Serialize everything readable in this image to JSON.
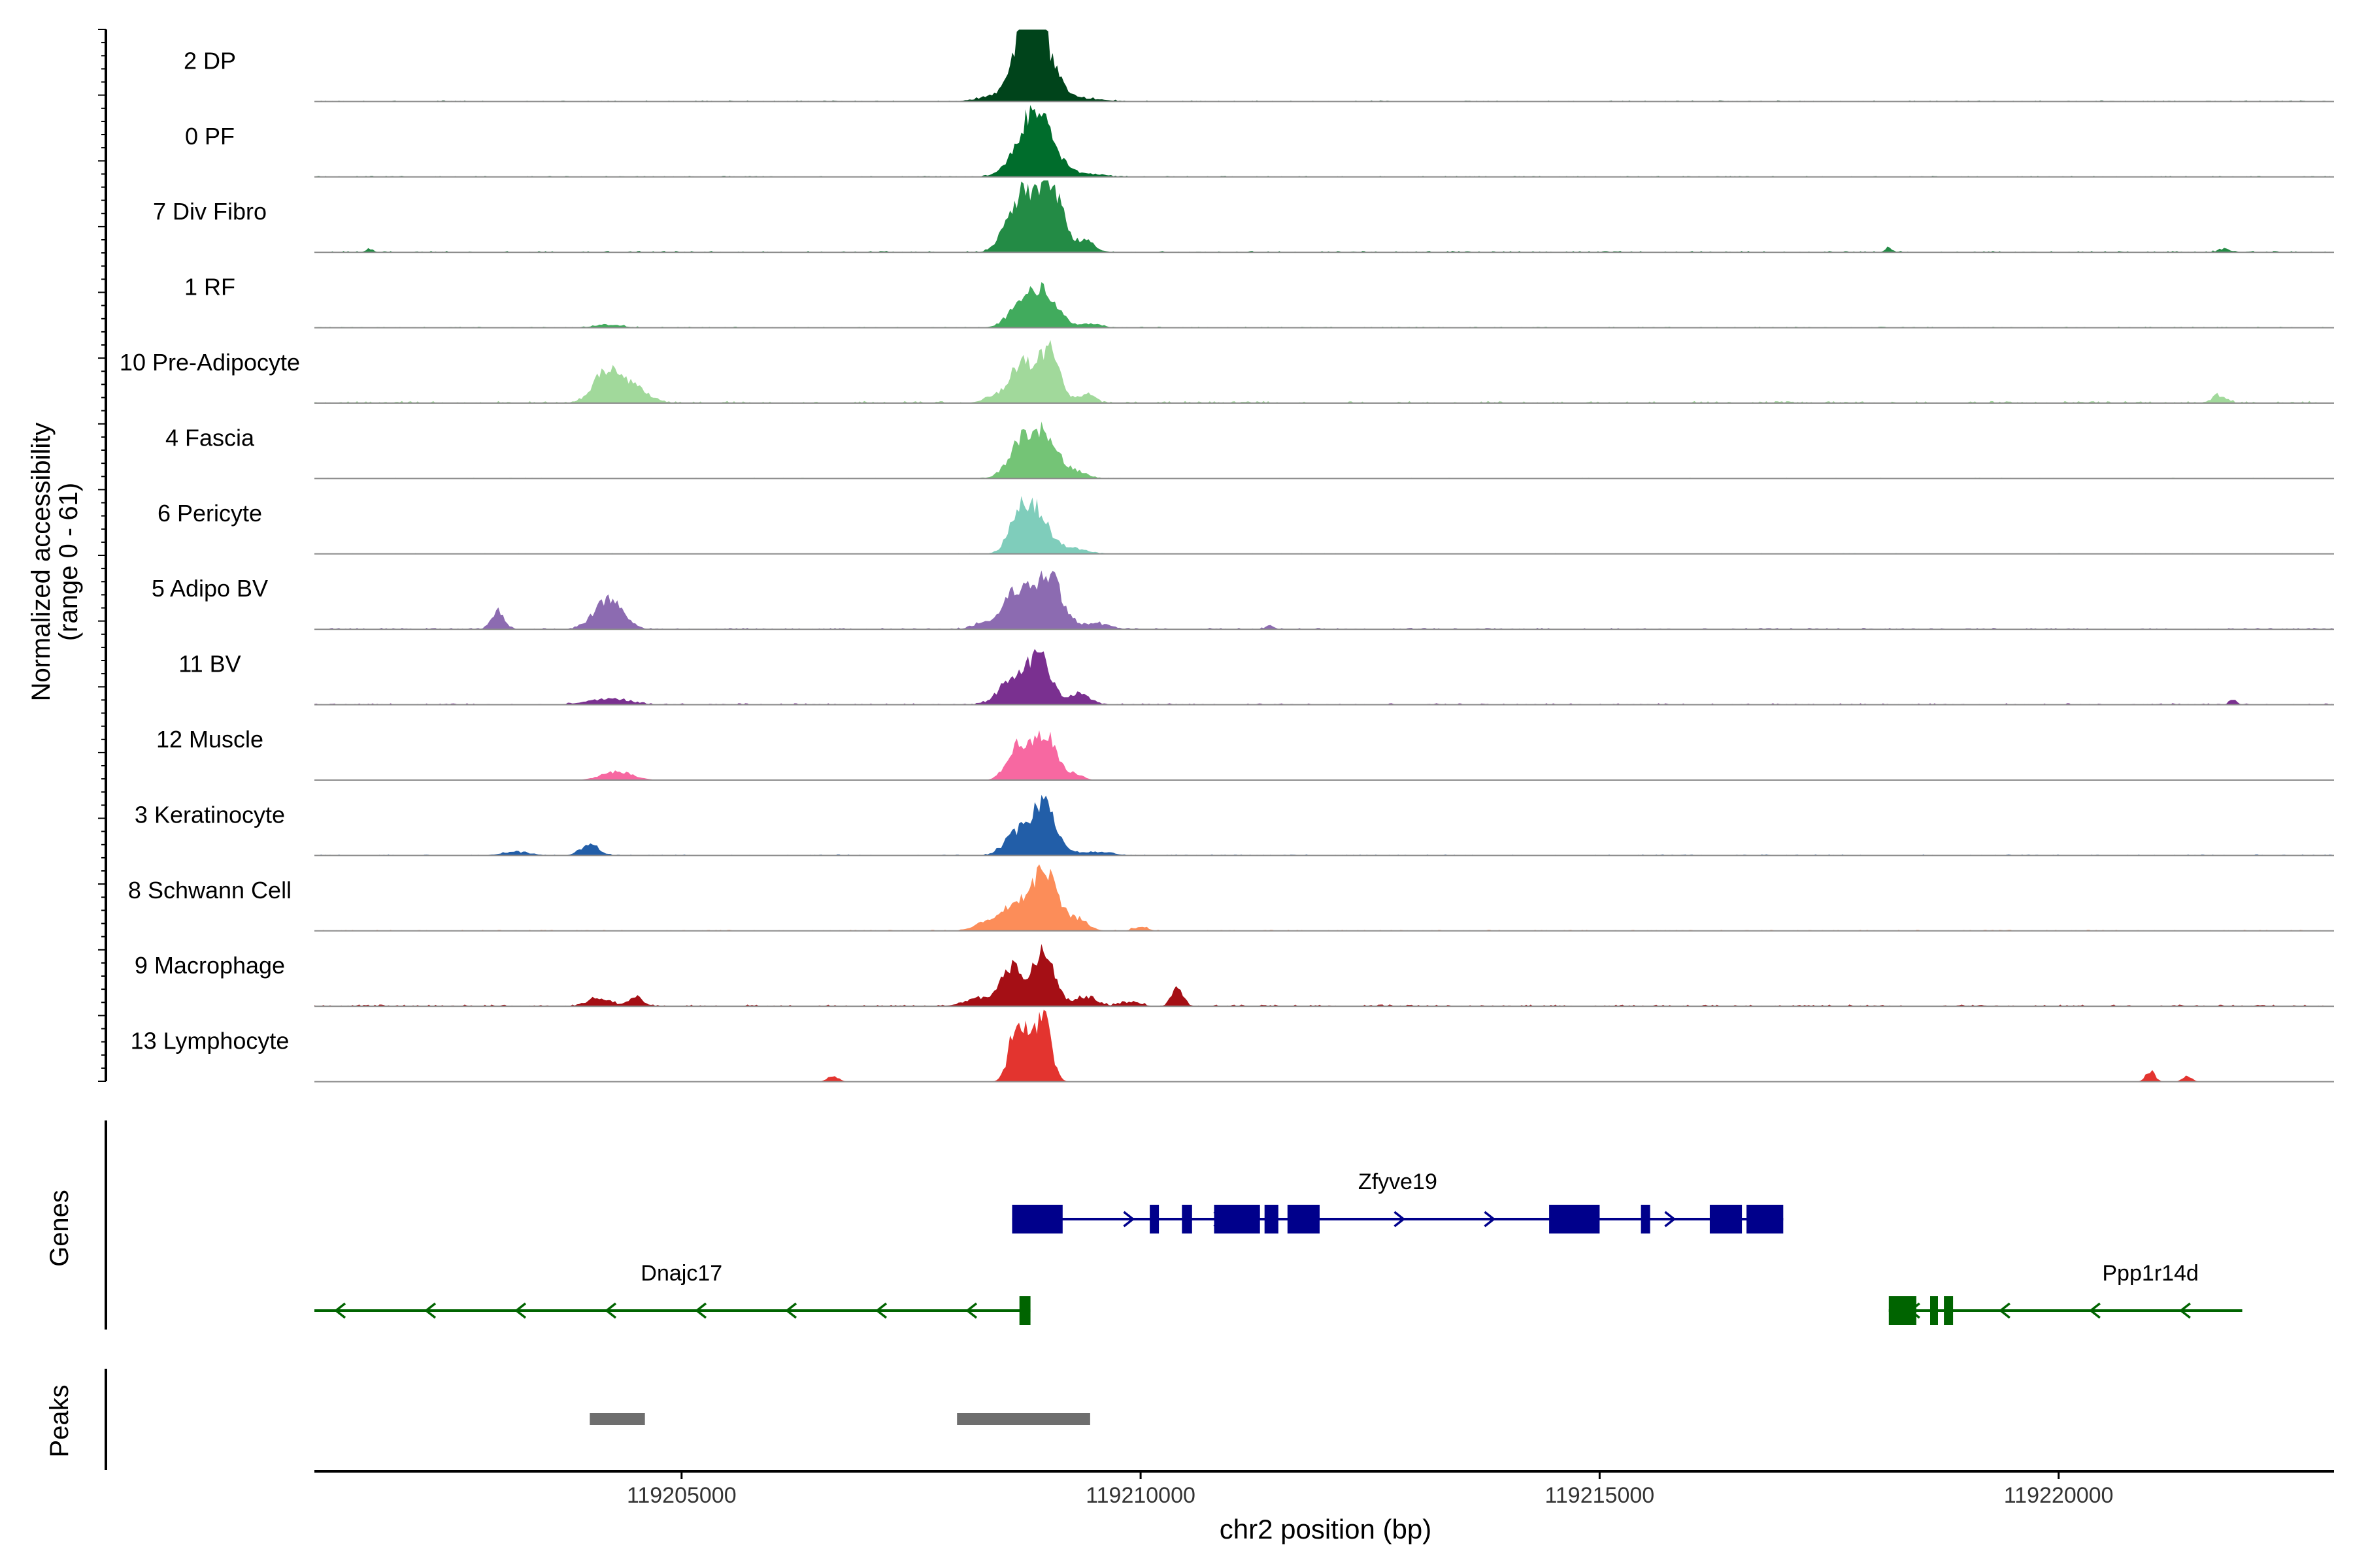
{
  "chart_data": {
    "type": "area",
    "title": "",
    "chromosome": "chr2",
    "xlabel": "chr2 position (bp)",
    "ylabel_line1": "Normalized accessibility",
    "ylabel_line2": "(range 0 - 61)",
    "xlim": [
      119201000,
      119223000
    ],
    "ylim": [
      0,
      61
    ],
    "x_ticks": [
      119205000,
      119210000,
      119215000,
      119220000
    ],
    "x_tick_labels": [
      "119205000",
      "119210000",
      "119215000",
      "119220000"
    ],
    "track_labels": {
      "genes": "Genes",
      "peaks": "Peaks"
    },
    "series": [
      {
        "name": "2 DP",
        "color": "#00441b",
        "peaks": [
          [
            119208700,
            0.4,
            160
          ],
          [
            119208750,
            0.46,
            110
          ],
          [
            119208950,
            0.5,
            160
          ],
          [
            119208850,
            0.5,
            110
          ],
          [
            119208300,
            0.04,
            150
          ],
          [
            119209400,
            0.04,
            200
          ]
        ],
        "bg": 0.015,
        "bg_seed": 11
      },
      {
        "name": "0 PF",
        "color": "#006d2c",
        "peaks": [
          [
            119208700,
            0.35,
            150
          ],
          [
            119208950,
            0.5,
            150
          ],
          [
            119208850,
            0.4,
            120
          ],
          [
            119209350,
            0.05,
            200
          ]
        ],
        "bg": 0.015,
        "bg_seed": 12
      },
      {
        "name": "7 Div Fibro",
        "color": "#238b45",
        "peaks": [
          [
            119208600,
            0.45,
            120
          ],
          [
            119208750,
            0.48,
            100
          ],
          [
            119208950,
            0.7,
            120
          ],
          [
            119209100,
            0.45,
            110
          ],
          [
            119209400,
            0.15,
            90
          ],
          [
            119201600,
            0.05,
            40
          ],
          [
            119218150,
            0.06,
            40
          ],
          [
            119221800,
            0.05,
            60
          ]
        ],
        "bg": 0.02,
        "bg_seed": 13
      },
      {
        "name": "1 RF",
        "color": "#41ab5d",
        "peaks": [
          [
            119208700,
            0.3,
            140
          ],
          [
            119208950,
            0.46,
            150
          ],
          [
            119209450,
            0.05,
            120
          ],
          [
            119204200,
            0.04,
            150
          ]
        ],
        "bg": 0.015,
        "bg_seed": 14
      },
      {
        "name": "10 Pre-Adipocyte",
        "color": "#a1d99b",
        "peaks": [
          [
            119204200,
            0.45,
            150
          ],
          [
            119204500,
            0.18,
            150
          ],
          [
            119208700,
            0.55,
            120
          ],
          [
            119209000,
            0.75,
            110
          ],
          [
            119208400,
            0.1,
            110
          ],
          [
            119209400,
            0.12,
            90
          ],
          [
            119221750,
            0.1,
            80
          ]
        ],
        "bg": 0.03,
        "bg_seed": 15
      },
      {
        "name": "4 Fascia",
        "color": "#74c476",
        "peaks": [
          [
            119208700,
            0.45,
            140
          ],
          [
            119208950,
            0.55,
            150
          ],
          [
            119209300,
            0.08,
            120
          ]
        ],
        "bg": 0.01,
        "bg_seed": 16
      },
      {
        "name": "6 Pericyte",
        "color": "#7fcdbb",
        "peaks": [
          [
            119208650,
            0.4,
            100
          ],
          [
            119208850,
            0.62,
            140
          ],
          [
            119209250,
            0.08,
            150
          ]
        ],
        "bg": 0.01,
        "bg_seed": 17
      },
      {
        "name": "5 Adipo BV",
        "color": "#8c6bb1",
        "peaks": [
          [
            119203000,
            0.25,
            70
          ],
          [
            119204200,
            0.42,
            150
          ],
          [
            119208650,
            0.55,
            140
          ],
          [
            119209000,
            0.75,
            140
          ],
          [
            119208300,
            0.08,
            120
          ],
          [
            119209500,
            0.08,
            150
          ],
          [
            119211400,
            0.05,
            40
          ]
        ],
        "bg": 0.02,
        "bg_seed": 18
      },
      {
        "name": "11 BV",
        "color": "#7a3090",
        "peaks": [
          [
            119208600,
            0.35,
            140
          ],
          [
            119208900,
            0.65,
            130
          ],
          [
            119209350,
            0.15,
            100
          ],
          [
            119204200,
            0.08,
            220
          ],
          [
            119221900,
            0.07,
            40
          ]
        ],
        "bg": 0.02,
        "bg_seed": 19
      },
      {
        "name": "12 Muscle",
        "color": "#f768a1",
        "peaks": [
          [
            119208650,
            0.45,
            110
          ],
          [
            119208950,
            0.65,
            130
          ],
          [
            119209300,
            0.08,
            80
          ],
          [
            119204300,
            0.12,
            170
          ]
        ],
        "bg": 0.0,
        "bg_seed": 20
      },
      {
        "name": "3 Keratinocyte",
        "color": "#225ea8",
        "peaks": [
          [
            119208650,
            0.3,
            130
          ],
          [
            119208950,
            0.72,
            130
          ],
          [
            119204000,
            0.15,
            100
          ],
          [
            119203200,
            0.05,
            150
          ],
          [
            119209500,
            0.05,
            180
          ]
        ],
        "bg": 0.015,
        "bg_seed": 21
      },
      {
        "name": "8 Schwann Cell",
        "color": "#fc8d59",
        "peaks": [
          [
            119208600,
            0.35,
            140
          ],
          [
            119208950,
            0.8,
            140
          ],
          [
            119208300,
            0.1,
            120
          ],
          [
            119209300,
            0.15,
            120
          ],
          [
            119210000,
            0.05,
            80
          ]
        ],
        "bg": 0.015,
        "bg_seed": 22
      },
      {
        "name": "9 Macrophage",
        "color": "#a50f15",
        "peaks": [
          [
            119208600,
            0.55,
            110
          ],
          [
            119208950,
            0.82,
            110
          ],
          [
            119208250,
            0.12,
            160
          ],
          [
            119209400,
            0.12,
            120
          ],
          [
            119210400,
            0.28,
            60
          ],
          [
            119204100,
            0.12,
            120
          ],
          [
            119204500,
            0.12,
            80
          ],
          [
            119209900,
            0.06,
            100
          ]
        ],
        "bg": 0.025,
        "bg_seed": 23
      },
      {
        "name": "13 Lymphocyte",
        "color": "#e3342f",
        "peaks": [
          [
            119208650,
            0.7,
            80
          ],
          [
            119208950,
            0.72,
            80
          ],
          [
            119208800,
            0.4,
            120
          ],
          [
            119206650,
            0.08,
            60
          ],
          [
            119221000,
            0.15,
            50
          ],
          [
            119221400,
            0.08,
            50
          ]
        ],
        "bg": 0.0,
        "bg_seed": 24
      }
    ],
    "genes": [
      {
        "name": "Zfyve19",
        "strand": "+",
        "start": 119208600,
        "end": 119217000,
        "color": "#00008b",
        "row": 1,
        "exons": [
          [
            119208600,
            119209150
          ],
          [
            119210100,
            119210200
          ],
          [
            119210450,
            119210560
          ],
          [
            119210800,
            119211300
          ],
          [
            119211350,
            119211500
          ],
          [
            119211600,
            119211950
          ],
          [
            119214450,
            119215000
          ],
          [
            119215450,
            119215550
          ],
          [
            119216200,
            119216550
          ],
          [
            119216600,
            119217000
          ]
        ]
      },
      {
        "name": "Dnajc17",
        "strand": "-",
        "start": 119201000,
        "end": 119208800,
        "color": "#006400",
        "row": 2,
        "exons": [
          [
            119208680,
            119208800
          ]
        ]
      },
      {
        "name": "Ppp1r14d",
        "strand": "-",
        "start": 119218150,
        "end": 119222000,
        "color": "#006400",
        "row": 2,
        "exons": [
          [
            119218150,
            119218450
          ],
          [
            119218600,
            119218650
          ],
          [
            119218750,
            119218850
          ]
        ]
      }
    ],
    "peaks": [
      [
        119204000,
        119204600
      ],
      [
        119208000,
        119209450
      ]
    ]
  }
}
